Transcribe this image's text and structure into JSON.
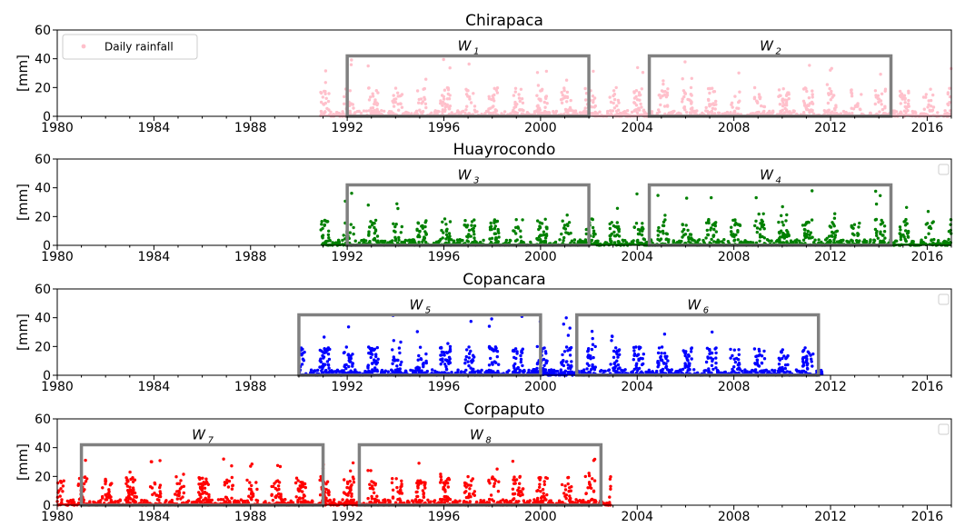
{
  "chart_data": [
    {
      "type": "scatter",
      "title": "Chirapaca",
      "ylabel": "[mm]",
      "xlim": [
        1980,
        2017
      ],
      "ylim": [
        0,
        60
      ],
      "xticks": [
        "1980",
        "1984",
        "1988",
        "1992",
        "1996",
        "2000",
        "2004",
        "2008",
        "2012",
        "2016"
      ],
      "yticks": [
        "0",
        "20",
        "40",
        "60"
      ],
      "legend": {
        "text": "Daily rainfall",
        "placement": "top-left"
      },
      "series": [
        {
          "name": "Daily rainfall",
          "color": "#ffc0cb",
          "x_range": [
            1990.9,
            2016.99
          ],
          "typical_max": 20,
          "peak_max": 40
        }
      ],
      "windows": [
        {
          "label": "W",
          "sub": "1",
          "x": [
            1992.0,
            2002.0
          ],
          "y": [
            0,
            42
          ]
        },
        {
          "label": "W",
          "sub": "2",
          "x": [
            2004.5,
            2014.5
          ],
          "y": [
            0,
            42
          ]
        }
      ]
    },
    {
      "type": "scatter",
      "title": "Huayrocondo",
      "ylabel": "[mm]",
      "xlim": [
        1980,
        2017
      ],
      "ylim": [
        0,
        60
      ],
      "xticks": [
        "1980",
        "1984",
        "1988",
        "1992",
        "1996",
        "2000",
        "2004",
        "2008",
        "2012",
        "2016"
      ],
      "yticks": [
        "0",
        "20",
        "40",
        "60"
      ],
      "legend": {
        "text": "",
        "placement": "top-right"
      },
      "series": [
        {
          "color": "#008000",
          "x_range": [
            1990.9,
            2016.99
          ],
          "typical_max": 18,
          "peak_max": 40
        }
      ],
      "windows": [
        {
          "label": "W",
          "sub": "3",
          "x": [
            1992.0,
            2002.0
          ],
          "y": [
            0,
            42
          ]
        },
        {
          "label": "W",
          "sub": "4",
          "x": [
            2004.5,
            2014.5
          ],
          "y": [
            0,
            42
          ]
        }
      ]
    },
    {
      "type": "scatter",
      "title": "Copancara",
      "ylabel": "[mm]",
      "xlim": [
        1980,
        2017
      ],
      "ylim": [
        0,
        60
      ],
      "xticks": [
        "1980",
        "1984",
        "1988",
        "1992",
        "1996",
        "2000",
        "2004",
        "2008",
        "2012",
        "2016"
      ],
      "yticks": [
        "0",
        "20",
        "40",
        "60"
      ],
      "legend": {
        "text": "",
        "placement": "top-right"
      },
      "series": [
        {
          "color": "#0000ff",
          "x_range": [
            1990.0,
            2011.7
          ],
          "typical_max": 20,
          "peak_max": 42
        }
      ],
      "windows": [
        {
          "label": "W",
          "sub": "5",
          "x": [
            1990.0,
            2000.0
          ],
          "y": [
            0,
            42
          ]
        },
        {
          "label": "W",
          "sub": "6",
          "x": [
            2001.5,
            2011.5
          ],
          "y": [
            0,
            42
          ]
        }
      ]
    },
    {
      "type": "scatter",
      "title": "Corpaputo",
      "ylabel": "[mm]",
      "xlim": [
        1980,
        2017
      ],
      "ylim": [
        0,
        60
      ],
      "xticks": [
        "1980",
        "1984",
        "1988",
        "1992",
        "1996",
        "2000",
        "2004",
        "2008",
        "2012",
        "2016"
      ],
      "yticks": [
        "0",
        "20",
        "40",
        "60"
      ],
      "legend": {
        "text": "",
        "placement": "top-right"
      },
      "series": [
        {
          "color": "#ff0000",
          "x_range": [
            1980.0,
            2002.9
          ],
          "typical_max": 20,
          "peak_max": 33
        }
      ],
      "windows": [
        {
          "label": "W",
          "sub": "7",
          "x": [
            1981.0,
            1991.0
          ],
          "y": [
            0,
            42
          ]
        },
        {
          "label": "W",
          "sub": "8",
          "x": [
            1992.5,
            2002.5
          ],
          "y": [
            0,
            42
          ]
        }
      ]
    }
  ]
}
